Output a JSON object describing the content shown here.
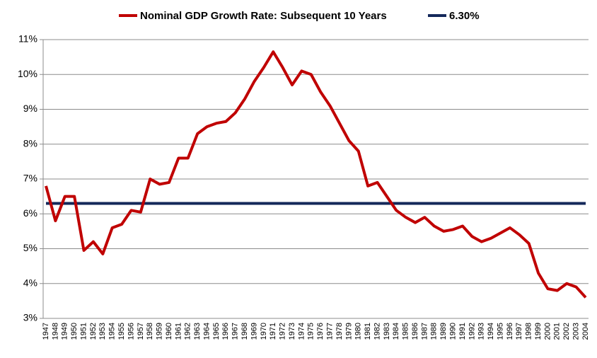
{
  "chart_data": {
    "type": "line",
    "categories": [
      "1947",
      "1948",
      "1949",
      "1950",
      "1951",
      "1952",
      "1953",
      "1954",
      "1955",
      "1956",
      "1957",
      "1958",
      "1959",
      "1960",
      "1961",
      "1962",
      "1963",
      "1964",
      "1965",
      "1966",
      "1967",
      "1968",
      "1969",
      "1970",
      "1971",
      "1972",
      "1973",
      "1974",
      "1975",
      "1976",
      "1977",
      "1978",
      "1979",
      "1980",
      "1981",
      "1982",
      "1983",
      "1984",
      "1985",
      "1986",
      "1987",
      "1988",
      "1989",
      "1990",
      "1991",
      "1992",
      "1993",
      "1994",
      "1995",
      "1996",
      "1997",
      "1998",
      "1999",
      "2000",
      "2001",
      "2002",
      "2003",
      "2004"
    ],
    "series": [
      {
        "name": "Nominal GDP Growth Rate: Subsequent 10 Years",
        "color": "#c00000",
        "values": [
          6.8,
          5.8,
          6.5,
          6.5,
          4.95,
          5.2,
          4.85,
          5.6,
          5.7,
          6.1,
          6.05,
          7.0,
          6.85,
          6.9,
          7.6,
          7.6,
          8.3,
          8.5,
          8.6,
          8.65,
          8.9,
          9.3,
          9.8,
          10.2,
          10.65,
          10.2,
          9.7,
          10.1,
          10.0,
          9.5,
          9.1,
          8.6,
          8.1,
          7.8,
          6.8,
          6.9,
          6.5,
          6.1,
          5.9,
          5.75,
          5.9,
          5.65,
          5.5,
          5.55,
          5.65,
          5.35,
          5.2,
          5.3,
          5.45,
          5.6,
          5.4,
          5.15,
          4.3,
          3.85,
          3.8,
          4.0,
          3.9,
          3.6
        ]
      },
      {
        "name": "6.30%",
        "color": "#14285a",
        "values": [
          6.3,
          6.3,
          6.3,
          6.3,
          6.3,
          6.3,
          6.3,
          6.3,
          6.3,
          6.3,
          6.3,
          6.3,
          6.3,
          6.3,
          6.3,
          6.3,
          6.3,
          6.3,
          6.3,
          6.3,
          6.3,
          6.3,
          6.3,
          6.3,
          6.3,
          6.3,
          6.3,
          6.3,
          6.3,
          6.3,
          6.3,
          6.3,
          6.3,
          6.3,
          6.3,
          6.3,
          6.3,
          6.3,
          6.3,
          6.3,
          6.3,
          6.3,
          6.3,
          6.3,
          6.3,
          6.3,
          6.3,
          6.3,
          6.3,
          6.3,
          6.3,
          6.3,
          6.3,
          6.3,
          6.3,
          6.3,
          6.3,
          6.3
        ]
      }
    ],
    "ylim": [
      3,
      11
    ],
    "yticks": [
      {
        "value": 3,
        "label": "3%"
      },
      {
        "value": 4,
        "label": "4%"
      },
      {
        "value": 5,
        "label": "5%"
      },
      {
        "value": 6,
        "label": "6%"
      },
      {
        "value": 7,
        "label": "7%"
      },
      {
        "value": 8,
        "label": "8%"
      },
      {
        "value": 9,
        "label": "9%"
      },
      {
        "value": 10,
        "label": "10%"
      },
      {
        "value": 11,
        "label": "11%"
      }
    ],
    "grid": true,
    "legend": "top"
  }
}
